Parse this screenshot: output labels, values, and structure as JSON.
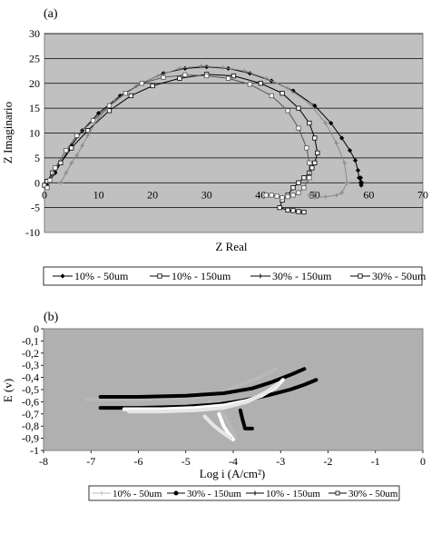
{
  "chart_data": [
    {
      "panel_label": "(a)",
      "type": "line",
      "xlabel": "Z Real",
      "ylabel": "Z Imaginario",
      "xlim": [
        0,
        70
      ],
      "ylim": [
        -10,
        30
      ],
      "x_ticks": [
        "0",
        "10",
        "20",
        "30",
        "40",
        "50",
        "60",
        "70"
      ],
      "y_ticks": [
        "-10",
        "-5",
        "0",
        "5",
        "10",
        "15",
        "20",
        "25",
        "30"
      ],
      "grid": "horizontal",
      "legend_position": "bottom",
      "series": [
        {
          "name": "10% - 50um",
          "color": "#000000",
          "marker": "diamond",
          "x": [
            0.5,
            1,
            2,
            3,
            5,
            7,
            10,
            14,
            18,
            22,
            26,
            30,
            34,
            38,
            42,
            46,
            50,
            53,
            55,
            56.5,
            57.5,
            58,
            58.2,
            58.5,
            58.6,
            58.5,
            58.7
          ],
          "y": [
            -0.5,
            0.5,
            2,
            4,
            7.5,
            10.5,
            14,
            17.5,
            20,
            22,
            23,
            23.3,
            23,
            22,
            20.5,
            18.5,
            15.5,
            12,
            9,
            6.5,
            4.5,
            2.5,
            1,
            0,
            -0.5,
            1,
            0
          ]
        },
        {
          "name": "10% - 150um",
          "color": "#000000",
          "marker": "square-open",
          "x": [
            0,
            0.5,
            1.5,
            3,
            5,
            8,
            12,
            16,
            20,
            25,
            30,
            35,
            40,
            44,
            47,
            49,
            50,
            50.5,
            50,
            49.5,
            49,
            48,
            47,
            46,
            45,
            44,
            43.5,
            45,
            46,
            47,
            48
          ],
          "y": [
            -0.5,
            0.3,
            2,
            4,
            7,
            10.5,
            14.5,
            17.5,
            19.5,
            21,
            21.8,
            21.5,
            20,
            18,
            15,
            12,
            9,
            6,
            4,
            3,
            2,
            1,
            0,
            -1,
            -2.5,
            -3.5,
            -5,
            -5.5,
            -5.6,
            -5.8,
            -5.9
          ]
        },
        {
          "name": "30% - 150um",
          "color": "#888888",
          "marker": "plus",
          "x": [
            3,
            4,
            5,
            6,
            7,
            8,
            10,
            13,
            17,
            21,
            25,
            29,
            33,
            37,
            41,
            45,
            49,
            52,
            54,
            55.5,
            56,
            55,
            54,
            52,
            50,
            49,
            50
          ],
          "y": [
            0,
            2,
            4,
            5.5,
            7.5,
            9.5,
            13,
            16.5,
            19.5,
            21.5,
            23,
            23.5,
            23.2,
            22.5,
            21,
            19,
            16,
            12,
            8,
            4,
            0,
            -2,
            -2.5,
            -2.8,
            -3,
            -2.5,
            -2
          ]
        },
        {
          "name": "30% - 50um",
          "color": "#555555",
          "marker": "square-open",
          "x": [
            0.5,
            1,
            2,
            4,
            6,
            9,
            12,
            15,
            18,
            22,
            26,
            30,
            34,
            38,
            42,
            45,
            47,
            48.5,
            49,
            49,
            48,
            47,
            46,
            45,
            44,
            43,
            42,
            41
          ],
          "y": [
            -1,
            0.5,
            3,
            6.5,
            9.5,
            12.5,
            15.5,
            18,
            20,
            21.2,
            21.7,
            21.5,
            21,
            19.8,
            17.5,
            14.5,
            11,
            7,
            4,
            1,
            -1,
            -2,
            -2.5,
            -2.8,
            -3,
            -2.7,
            -2.5,
            -2.5
          ]
        }
      ]
    },
    {
      "panel_label": "(b)",
      "type": "line",
      "xlabel": "Log i (A/cm²)",
      "ylabel": "E (v)",
      "xlim": [
        -8,
        0
      ],
      "ylim": [
        -1,
        0
      ],
      "x_ticks": [
        "-8",
        "-7",
        "-6",
        "-5",
        "-4",
        "-3",
        "-2",
        "-1",
        "0"
      ],
      "y_ticks": [
        "0",
        "-0,1",
        "-0,2",
        "-0,3",
        "-0,4",
        "-0,5",
        "-0,6",
        "-0,7",
        "-0,8",
        "-0,9",
        "-1"
      ],
      "grid": "off",
      "legend_position": "bottom",
      "series": [
        {
          "name": "10% - 50um",
          "color": "#b8b8b8",
          "branches": [
            {
              "x": [
                -7.1,
                -6,
                -5,
                -4.5,
                -4.2,
                -4,
                -3.8,
                -3.5,
                -3.3,
                -3.1
              ],
              "y": [
                -0.58,
                -0.58,
                -0.57,
                -0.55,
                -0.52,
                -0.48,
                -0.45,
                -0.41,
                -0.37,
                -0.33
              ]
            },
            {
              "x": [
                -4.5,
                -4.3,
                -4.15,
                -4.05,
                -3.95
              ],
              "y": [
                -0.6,
                -0.66,
                -0.73,
                -0.82,
                -0.9
              ]
            }
          ]
        },
        {
          "name": "30% - 150um",
          "color": "#000000",
          "branches": [
            {
              "x": [
                -6.8,
                -6,
                -5,
                -4.2,
                -3.6,
                -3.2,
                -2.8,
                -2.5
              ],
              "y": [
                -0.56,
                -0.56,
                -0.55,
                -0.53,
                -0.49,
                -0.44,
                -0.38,
                -0.33
              ]
            },
            {
              "x": [
                -6.8,
                -6,
                -5,
                -4.3,
                -3.8,
                -3.3,
                -2.8,
                -2.5,
                -2.25
              ],
              "y": [
                -0.65,
                -0.65,
                -0.64,
                -0.62,
                -0.59,
                -0.55,
                -0.5,
                -0.46,
                -0.42
              ]
            },
            {
              "x": [
                -3.85,
                -3.8,
                -3.75,
                -3.6
              ],
              "y": [
                -0.67,
                -0.75,
                -0.82,
                -0.82
              ]
            }
          ]
        },
        {
          "name": "10% - 150um",
          "color": "#ffffff",
          "branches": [
            {
              "x": [
                -6.3,
                -5.5,
                -4.8,
                -4.2,
                -3.7,
                -3.4,
                -3.1,
                -2.95
              ],
              "y": [
                -0.66,
                -0.66,
                -0.65,
                -0.63,
                -0.59,
                -0.55,
                -0.48,
                -0.42
              ]
            },
            {
              "x": [
                -4.3,
                -4.2,
                -4.1,
                -4
              ],
              "y": [
                -0.7,
                -0.8,
                -0.86,
                -0.91
              ]
            }
          ]
        },
        {
          "name": "30% - 50um",
          "color": "#e6e6e6",
          "branches": [
            {
              "x": [
                -6.2,
                -5.5,
                -4.8,
                -4.2,
                -3.7,
                -3.3,
                -3.05
              ],
              "y": [
                -0.68,
                -0.68,
                -0.67,
                -0.65,
                -0.6,
                -0.52,
                -0.45
              ]
            },
            {
              "x": [
                -4.6,
                -4.4,
                -4.2,
                -4.05
              ],
              "y": [
                -0.72,
                -0.8,
                -0.86,
                -0.9
              ]
            }
          ]
        }
      ]
    }
  ]
}
